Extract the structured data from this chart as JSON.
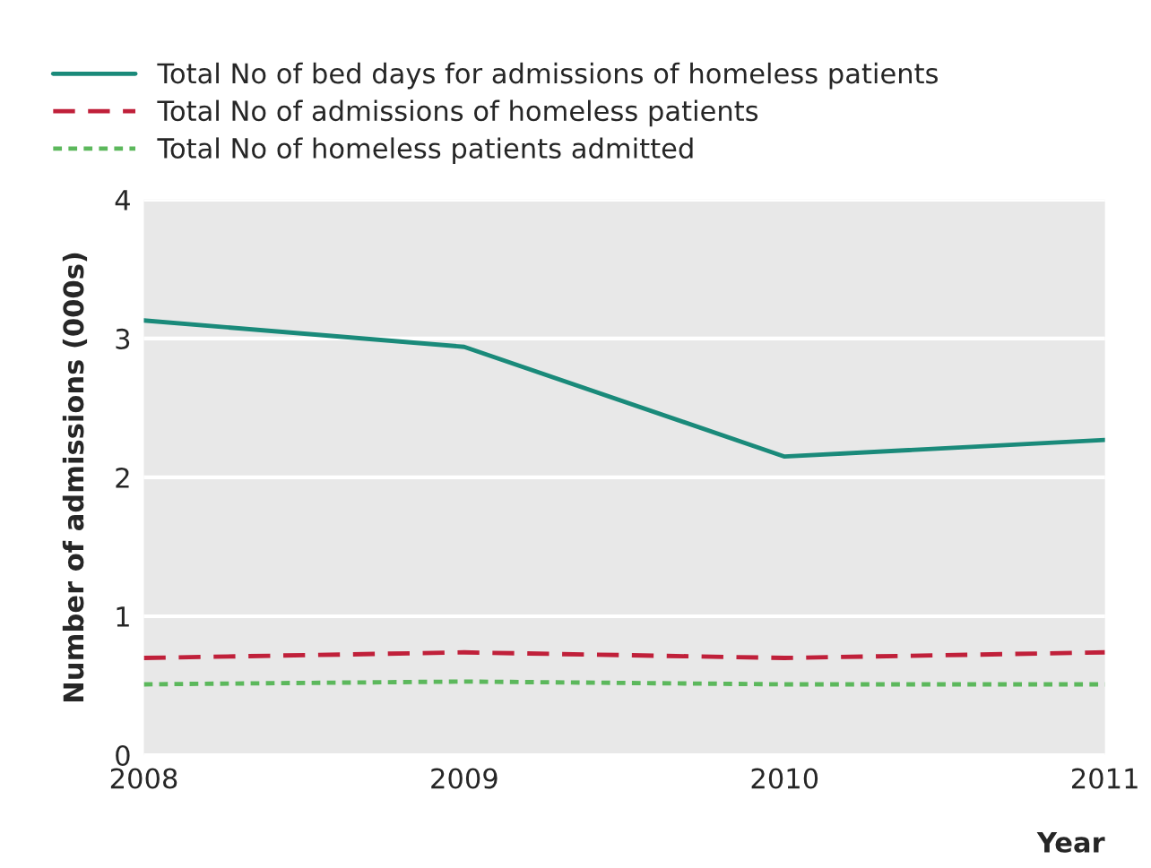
{
  "chart_data": {
    "type": "line",
    "xlabel": "Year",
    "ylabel": "Number of admissions (000s)",
    "x": [
      2008,
      2009,
      2010,
      2011
    ],
    "series": [
      {
        "name": "Total No of bed days for admissions of homeless patients",
        "color": "#1a8a7a",
        "line_style": "solid",
        "values": [
          3.13,
          2.94,
          2.15,
          2.27
        ]
      },
      {
        "name": "Total No of admissions of homeless patients",
        "color": "#c0203a",
        "line_style": "dashed",
        "values": [
          0.7,
          0.74,
          0.7,
          0.74
        ]
      },
      {
        "name": "Total No of homeless patients admitted",
        "color": "#5cb85c",
        "line_style": "dotted",
        "values": [
          0.51,
          0.53,
          0.51,
          0.51
        ]
      }
    ],
    "xlim": [
      2008,
      2011
    ],
    "xticks": [
      2008,
      2009,
      2010,
      2011
    ],
    "ylim": [
      0,
      4
    ],
    "yticks": [
      0,
      1,
      2,
      3,
      4
    ],
    "grid": "y",
    "legend": "top",
    "marker": "none"
  }
}
